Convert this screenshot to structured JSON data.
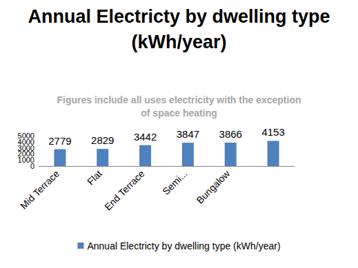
{
  "chart_data": {
    "type": "bar",
    "title": "Annual Electricty by dwelling type (kWh/year)",
    "subtitle": "Figures include all uses electricity with the exception of space heating",
    "categories": [
      "Mid Terrace",
      "Flat",
      "End Terrace",
      "Semi...",
      "Bungalow",
      null
    ],
    "series": [
      {
        "name": "Annual Electricty by dwelling type (kWh/year)",
        "color": "#4f81bd",
        "values": [
          2779,
          2829,
          3442,
          3847,
          3866,
          4153
        ]
      }
    ],
    "ylim": [
      0,
      5000
    ],
    "yticks": [
      0,
      1000,
      2000,
      3000,
      4000,
      5000
    ],
    "grid": false,
    "data_labels": true,
    "legend": "bottom"
  }
}
